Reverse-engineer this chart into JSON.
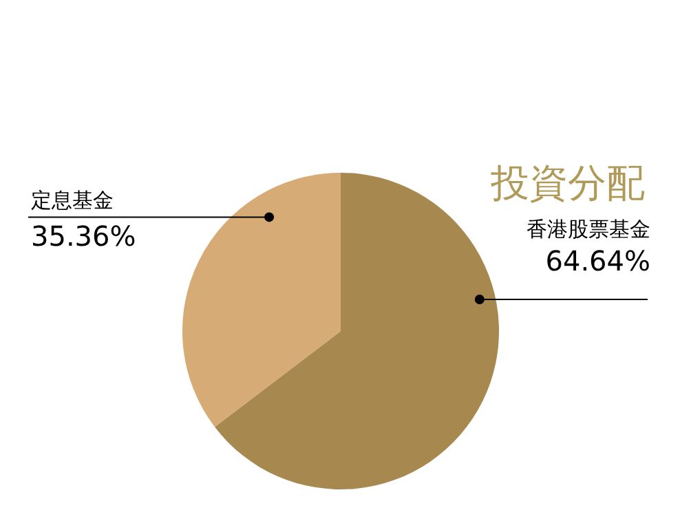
{
  "chart_data": {
    "type": "pie",
    "title": "投資分配",
    "categories": [
      "香港股票基金",
      "定息基金"
    ],
    "values": [
      64.64,
      35.36
    ],
    "colors": [
      "#a7884f",
      "#d7ab75"
    ],
    "value_labels": [
      "64.64%",
      "35.36%"
    ]
  }
}
